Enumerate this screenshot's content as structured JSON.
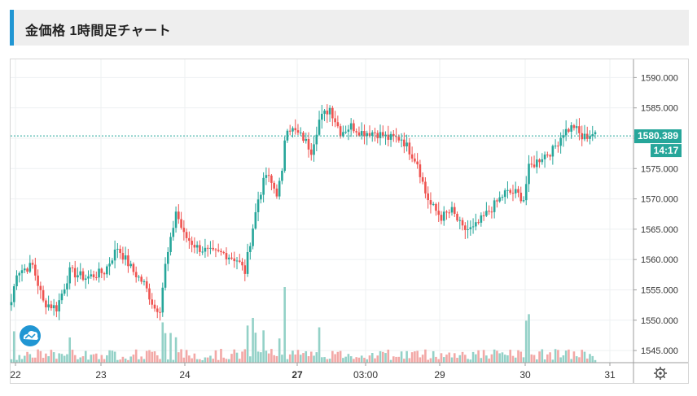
{
  "header": {
    "title": "金価格 1時間足チャート"
  },
  "price_badge": {
    "price": "1580.389",
    "countdown": "14:17"
  },
  "colors": {
    "up": "#26a69a",
    "down": "#ef5350",
    "vol_up": "#93d1c7",
    "vol_down": "#f2a8a6",
    "accent": "#2196d3",
    "price_line": "#26a69a"
  },
  "icons": {
    "logo": "cloud-logo-icon",
    "settings": "gear-icon"
  },
  "chart_data": {
    "type": "candlestick",
    "title": "金価格 1時間足チャート",
    "ylim": [
      1543,
      1593
    ],
    "y_ticks": [
      "1590.000",
      "1585.000",
      "1580.000",
      "1575.000",
      "1570.000",
      "1565.000",
      "1560.000",
      "1555.000",
      "1550.000",
      "1545.000"
    ],
    "x_ticks": [
      "22",
      "23",
      "24",
      "27",
      "03:00",
      "29",
      "30",
      "31"
    ],
    "current_price": 1580.389,
    "anchors": [
      [
        0,
        1553
      ],
      [
        2,
        1558
      ],
      [
        8,
        1559
      ],
      [
        12,
        1553
      ],
      [
        17,
        1552
      ],
      [
        22,
        1558
      ],
      [
        28,
        1557
      ],
      [
        35,
        1558
      ],
      [
        40,
        1562
      ],
      [
        46,
        1558
      ],
      [
        50,
        1556
      ],
      [
        54,
        1552
      ],
      [
        56,
        1552
      ],
      [
        58,
        1559
      ],
      [
        60,
        1563
      ],
      [
        62,
        1568
      ],
      [
        65,
        1564
      ],
      [
        70,
        1562
      ],
      [
        76,
        1561
      ],
      [
        80,
        1561
      ],
      [
        85,
        1560
      ],
      [
        88,
        1558
      ],
      [
        90,
        1563
      ],
      [
        93,
        1570
      ],
      [
        96,
        1574
      ],
      [
        100,
        1571
      ],
      [
        102,
        1574
      ],
      [
        103,
        1580
      ],
      [
        104,
        1582
      ],
      [
        110,
        1580
      ],
      [
        113,
        1578
      ],
      [
        116,
        1583
      ],
      [
        120,
        1585
      ],
      [
        124,
        1581
      ],
      [
        128,
        1582
      ],
      [
        132,
        1581
      ],
      [
        137,
        1581
      ],
      [
        142,
        1580
      ],
      [
        147,
        1580
      ],
      [
        150,
        1578
      ],
      [
        153,
        1576
      ],
      [
        156,
        1571
      ],
      [
        158,
        1569
      ],
      [
        162,
        1567
      ],
      [
        166,
        1568
      ],
      [
        170,
        1565
      ],
      [
        174,
        1565
      ],
      [
        178,
        1567
      ],
      [
        182,
        1569
      ],
      [
        186,
        1571
      ],
      [
        190,
        1571
      ],
      [
        193,
        1570
      ],
      [
        195,
        1575
      ],
      [
        200,
        1577
      ],
      [
        204,
        1578
      ],
      [
        208,
        1581
      ],
      [
        212,
        1582
      ],
      [
        215,
        1580
      ],
      [
        220,
        1581
      ]
    ]
  }
}
